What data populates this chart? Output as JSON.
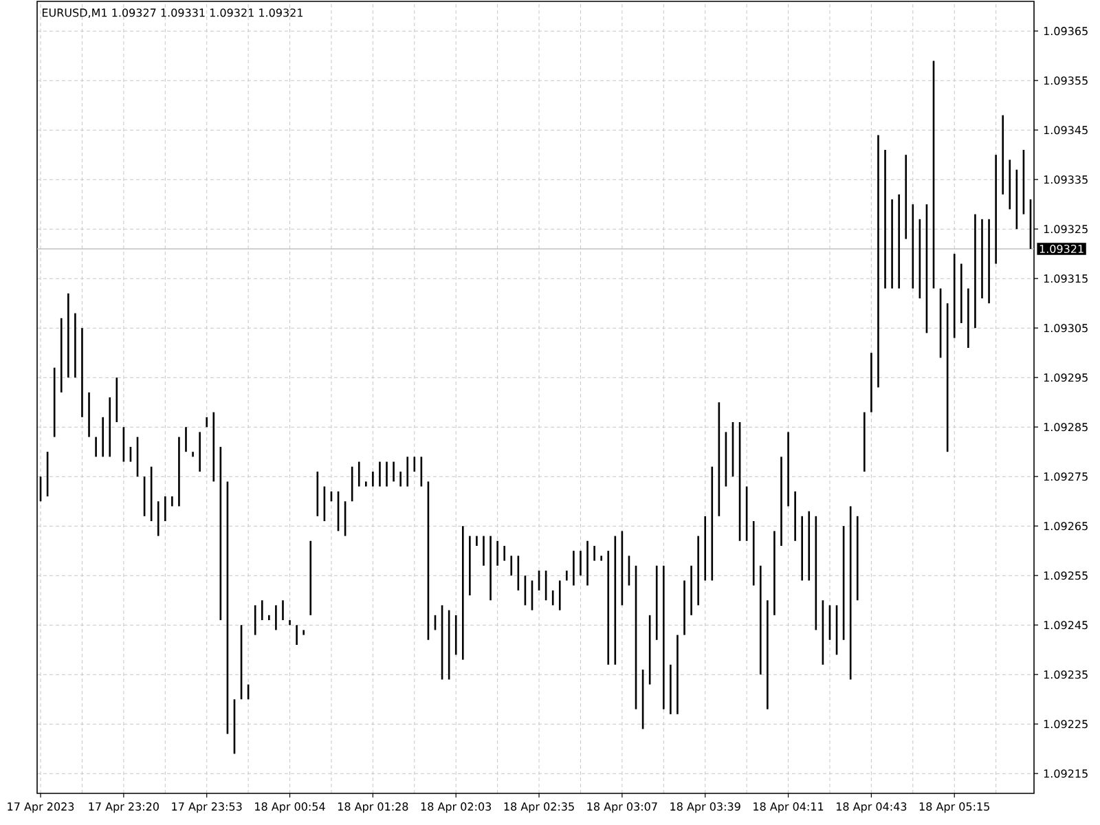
{
  "chart_data": {
    "type": "bar",
    "title": "EURUSD,M1 1.09327 1.09331 1.09321 1.09321",
    "categories": [
      "17 Apr 2023",
      null,
      null,
      null,
      null,
      null,
      null,
      null,
      null,
      null,
      null,
      null,
      "17 Apr 23:20",
      null,
      null,
      null,
      null,
      null,
      null,
      null,
      null,
      null,
      null,
      null,
      "17 Apr 23:53",
      null,
      null,
      null,
      null,
      null,
      null,
      null,
      null,
      null,
      null,
      null,
      "18 Apr 00:54",
      null,
      null,
      null,
      null,
      null,
      null,
      null,
      null,
      null,
      null,
      null,
      "18 Apr 01:28",
      null,
      null,
      null,
      null,
      null,
      null,
      null,
      null,
      null,
      null,
      null,
      "18 Apr 02:03",
      null,
      null,
      null,
      null,
      null,
      null,
      null,
      null,
      null,
      null,
      null,
      "18 Apr 02:35",
      null,
      null,
      null,
      null,
      null,
      null,
      null,
      null,
      null,
      null,
      null,
      "18 Apr 03:07",
      null,
      null,
      null,
      null,
      null,
      null,
      null,
      null,
      null,
      null,
      null,
      "18 Apr 03:39",
      null,
      null,
      null,
      null,
      null,
      null,
      null,
      null,
      null,
      null,
      null,
      "18 Apr 04:11",
      null,
      null,
      null,
      null,
      null,
      null,
      null,
      null,
      null,
      null,
      null,
      "18 Apr 04:43",
      null,
      null,
      null,
      null,
      null,
      null,
      null,
      null,
      null,
      null,
      null,
      "18 Apr 05:15",
      null,
      null,
      null,
      null,
      null,
      null,
      null,
      null,
      null,
      null,
      null
    ],
    "base": [
      1.0927,
      1.09271,
      1.09283,
      1.09292,
      1.09295,
      1.09295,
      1.09287,
      1.09283,
      1.09279,
      1.09279,
      1.09279,
      1.09286,
      1.09278,
      1.09278,
      1.09275,
      1.09267,
      1.09266,
      1.09263,
      1.09266,
      1.09269,
      1.09269,
      1.0928,
      1.09279,
      1.09276,
      1.09285,
      1.09274,
      1.09246,
      1.09223,
      1.09219,
      1.0923,
      1.0923,
      1.09243,
      1.09246,
      1.09246,
      1.09244,
      1.09246,
      1.09245,
      1.09241,
      1.09243,
      1.09247,
      1.09267,
      1.09266,
      1.0927,
      1.09264,
      1.09263,
      1.0927,
      1.09273,
      1.09273,
      1.09273,
      1.09273,
      1.09273,
      1.09274,
      1.09273,
      1.09273,
      1.09276,
      1.09273,
      1.09242,
      1.09244,
      1.09234,
      1.09234,
      1.09239,
      1.09238,
      1.09251,
      1.09261,
      1.09257,
      1.0925,
      1.09257,
      1.09258,
      1.09255,
      1.09252,
      1.09249,
      1.09248,
      1.09252,
      1.0925,
      1.09249,
      1.09248,
      1.09254,
      1.09253,
      1.09255,
      1.09253,
      1.09258,
      1.09258,
      1.09237,
      1.09237,
      1.09249,
      1.09253,
      1.09228,
      1.09224,
      1.09233,
      1.09242,
      1.09228,
      1.09227,
      1.09227,
      1.09243,
      1.09247,
      1.09249,
      1.09254,
      1.09254,
      1.09267,
      1.09273,
      1.09275,
      1.09262,
      1.09262,
      1.09253,
      1.09235,
      1.09228,
      1.09247,
      1.09261,
      1.09269,
      1.09262,
      1.09254,
      1.09254,
      1.09244,
      1.09237,
      1.09242,
      1.09239,
      1.09242,
      1.09234,
      1.0925,
      1.09276,
      1.09288,
      1.09293,
      1.09313,
      1.09313,
      1.09313,
      1.09323,
      1.09313,
      1.09311,
      1.09304,
      1.09313,
      1.09299,
      1.0928,
      1.09303,
      1.09306,
      1.09301,
      1.09305,
      1.09311,
      1.0931,
      1.09318,
      1.09332,
      1.09329,
      1.09325,
      1.09328,
      1.09321
    ],
    "values": [
      5e-05,
      9e-05,
      0.00014,
      0.00015,
      0.00017,
      0.00013,
      0.00018,
      9e-05,
      4e-05,
      8e-05,
      0.00012,
      9e-05,
      7e-05,
      3e-05,
      8e-05,
      8e-05,
      0.00011,
      7e-05,
      5e-05,
      2e-05,
      0.00014,
      5e-05,
      1e-05,
      8e-05,
      2e-05,
      0.00014,
      0.00035,
      0.00051,
      0.00011,
      0.00015,
      3e-05,
      6e-05,
      4e-05,
      1e-05,
      5e-05,
      4e-05,
      1e-05,
      4e-05,
      1e-05,
      0.00015,
      9e-05,
      7e-05,
      2e-05,
      8e-05,
      7e-05,
      7e-05,
      5e-05,
      1e-05,
      3e-05,
      5e-05,
      5e-05,
      4e-05,
      3e-05,
      6e-05,
      3e-05,
      6e-05,
      0.00032,
      3e-05,
      0.00015,
      0.00014,
      8e-05,
      0.00027,
      0.00012,
      2e-05,
      6e-05,
      0.00013,
      5e-05,
      3e-05,
      4e-05,
      7e-05,
      6e-05,
      6e-05,
      4e-05,
      6e-05,
      3e-05,
      6e-05,
      2e-05,
      7e-05,
      5e-05,
      9e-05,
      3e-05,
      1e-05,
      0.00023,
      0.00026,
      0.00015,
      6e-05,
      0.00029,
      0.00012,
      0.00014,
      0.00015,
      0.00029,
      0.0001,
      0.00016,
      0.00011,
      0.0001,
      0.00014,
      0.00013,
      0.00023,
      0.00023,
      0.00011,
      0.00011,
      0.00024,
      0.00011,
      0.00013,
      0.00022,
      0.00022,
      0.00017,
      0.00018,
      0.00015,
      0.0001,
      0.00013,
      0.00014,
      0.00023,
      0.00013,
      7e-05,
      0.0001,
      0.00023,
      0.00035,
      0.00017,
      0.00012,
      0.00012,
      0.00051,
      0.00028,
      0.00018,
      0.00019,
      0.00017,
      0.00017,
      0.00016,
      0.00026,
      0.00046,
      0.00014,
      0.0003,
      0.00017,
      0.00012,
      0.00012,
      0.00023,
      0.00016,
      0.00017,
      0.00022,
      0.00016,
      0.0001,
      0.00012,
      0.00013,
      0.0001
    ],
    "color": "#000000",
    "ylim": [
      1.09211,
      1.09371
    ],
    "yticks": [
      1.09215,
      1.09225,
      1.09235,
      1.09245,
      1.09255,
      1.09265,
      1.09275,
      1.09285,
      1.09295,
      1.09305,
      1.09315,
      1.09325,
      1.09335,
      1.09345,
      1.09355,
      1.09365
    ],
    "grid": true,
    "ref_lines": [
      {
        "axis": "y",
        "value": 1.09321,
        "label": "1.09321",
        "color": "#c0c0c0"
      }
    ]
  }
}
